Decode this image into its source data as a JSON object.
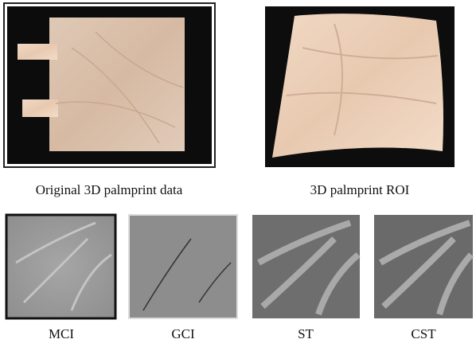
{
  "top_row": [
    {
      "caption": "Original 3D palmprint data"
    },
    {
      "caption": "3D palmprint ROI"
    }
  ],
  "bottom_row": [
    {
      "caption": "MCI"
    },
    {
      "caption": "GCI"
    },
    {
      "caption": "ST"
    },
    {
      "caption": "CST"
    }
  ]
}
